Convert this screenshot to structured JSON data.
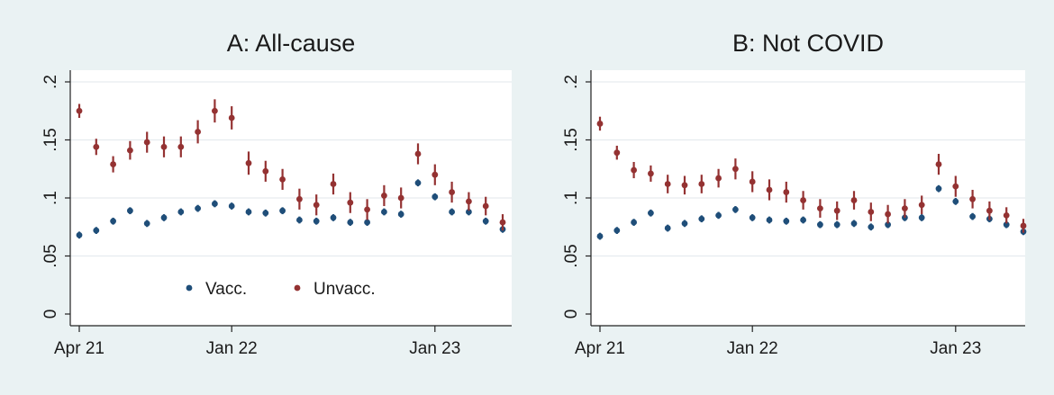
{
  "chart_data": [
    {
      "panel": "A",
      "type": "scatter",
      "title": "A: All-cause",
      "x_unit": "month",
      "x": [
        "2021-04",
        "2021-05",
        "2021-06",
        "2021-07",
        "2021-08",
        "2021-09",
        "2021-10",
        "2021-11",
        "2021-12",
        "2022-01",
        "2022-02",
        "2022-03",
        "2022-04",
        "2022-05",
        "2022-06",
        "2022-07",
        "2022-08",
        "2022-09",
        "2022-10",
        "2022-11",
        "2022-12",
        "2023-01",
        "2023-02",
        "2023-03",
        "2023-04",
        "2023-05"
      ],
      "x_ticks": [
        {
          "value": "2021-04",
          "label": "Apr 21"
        },
        {
          "value": "2022-01",
          "label": "Jan 22"
        },
        {
          "value": "2023-01",
          "label": "Jan 23"
        }
      ],
      "ylim": [
        0,
        0.2
      ],
      "y_ticks": [
        {
          "value": 0,
          "label": "0"
        },
        {
          "value": 0.05,
          "label": ".05"
        },
        {
          "value": 0.1,
          "label": ".1"
        },
        {
          "value": 0.15,
          "label": ".15"
        },
        {
          "value": 0.2,
          "label": ".2"
        }
      ],
      "grid": true,
      "legend": {
        "position": "inside-bottom",
        "entries": [
          "Vacc.",
          "Unvacc."
        ]
      },
      "series": [
        {
          "name": "Vacc.",
          "color": "#1f4e79",
          "values": [
            0.068,
            0.072,
            0.08,
            0.089,
            0.078,
            0.083,
            0.088,
            0.091,
            0.095,
            0.093,
            0.088,
            0.087,
            0.089,
            0.081,
            0.08,
            0.083,
            0.079,
            0.079,
            0.088,
            0.086,
            0.113,
            0.101,
            0.088,
            0.088,
            0.08,
            0.073
          ],
          "ci": [
            0.003,
            0.003,
            0.003,
            0.003,
            0.003,
            0.003,
            0.003,
            0.003,
            0.003,
            0.003,
            0.003,
            0.003,
            0.003,
            0.003,
            0.003,
            0.003,
            0.003,
            0.003,
            0.003,
            0.003,
            0.003,
            0.003,
            0.003,
            0.003,
            0.003,
            0.003
          ]
        },
        {
          "name": "Unvacc.",
          "color": "#943232",
          "values": [
            0.175,
            0.144,
            0.129,
            0.141,
            0.148,
            0.144,
            0.144,
            0.157,
            0.175,
            0.169,
            0.13,
            0.123,
            0.116,
            0.099,
            0.094,
            0.112,
            0.096,
            0.09,
            0.102,
            0.1,
            0.138,
            0.12,
            0.105,
            0.097,
            0.093,
            0.079
          ],
          "ci": [
            0.006,
            0.007,
            0.007,
            0.008,
            0.009,
            0.009,
            0.009,
            0.01,
            0.01,
            0.01,
            0.01,
            0.009,
            0.009,
            0.009,
            0.009,
            0.009,
            0.009,
            0.009,
            0.009,
            0.009,
            0.009,
            0.009,
            0.009,
            0.008,
            0.008,
            0.007
          ]
        }
      ]
    },
    {
      "panel": "B",
      "type": "scatter",
      "title": "B: Not COVID",
      "x_unit": "month",
      "x": [
        "2021-04",
        "2021-05",
        "2021-06",
        "2021-07",
        "2021-08",
        "2021-09",
        "2021-10",
        "2021-11",
        "2021-12",
        "2022-01",
        "2022-02",
        "2022-03",
        "2022-04",
        "2022-05",
        "2022-06",
        "2022-07",
        "2022-08",
        "2022-09",
        "2022-10",
        "2022-11",
        "2022-12",
        "2023-01",
        "2023-02",
        "2023-03",
        "2023-04",
        "2023-05"
      ],
      "x_ticks": [
        {
          "value": "2021-04",
          "label": "Apr 21"
        },
        {
          "value": "2022-01",
          "label": "Jan 22"
        },
        {
          "value": "2023-01",
          "label": "Jan 23"
        }
      ],
      "ylim": [
        0,
        0.2
      ],
      "y_ticks": [
        {
          "value": 0,
          "label": "0"
        },
        {
          "value": 0.05,
          "label": ".05"
        },
        {
          "value": 0.1,
          "label": ".1"
        },
        {
          "value": 0.15,
          "label": ".15"
        },
        {
          "value": 0.2,
          "label": ".2"
        }
      ],
      "grid": true,
      "legend": null,
      "series": [
        {
          "name": "Vacc.",
          "color": "#1f4e79",
          "values": [
            0.067,
            0.072,
            0.079,
            0.087,
            0.074,
            0.078,
            0.082,
            0.085,
            0.09,
            0.083,
            0.081,
            0.08,
            0.081,
            0.077,
            0.077,
            0.078,
            0.075,
            0.077,
            0.083,
            0.083,
            0.108,
            0.097,
            0.084,
            0.082,
            0.077,
            0.071
          ],
          "ci": [
            0.003,
            0.003,
            0.003,
            0.003,
            0.003,
            0.003,
            0.003,
            0.003,
            0.003,
            0.003,
            0.003,
            0.003,
            0.003,
            0.003,
            0.003,
            0.003,
            0.003,
            0.003,
            0.003,
            0.003,
            0.003,
            0.003,
            0.003,
            0.003,
            0.003,
            0.003
          ]
        },
        {
          "name": "Unvacc.",
          "color": "#943232",
          "values": [
            0.164,
            0.139,
            0.124,
            0.121,
            0.112,
            0.111,
            0.112,
            0.117,
            0.125,
            0.114,
            0.107,
            0.105,
            0.098,
            0.091,
            0.089,
            0.098,
            0.088,
            0.086,
            0.091,
            0.094,
            0.129,
            0.11,
            0.099,
            0.089,
            0.085,
            0.076
          ],
          "ci": [
            0.006,
            0.006,
            0.007,
            0.007,
            0.008,
            0.008,
            0.008,
            0.008,
            0.009,
            0.009,
            0.009,
            0.009,
            0.008,
            0.008,
            0.008,
            0.008,
            0.008,
            0.008,
            0.008,
            0.008,
            0.009,
            0.009,
            0.008,
            0.008,
            0.007,
            0.006
          ]
        }
      ]
    }
  ]
}
